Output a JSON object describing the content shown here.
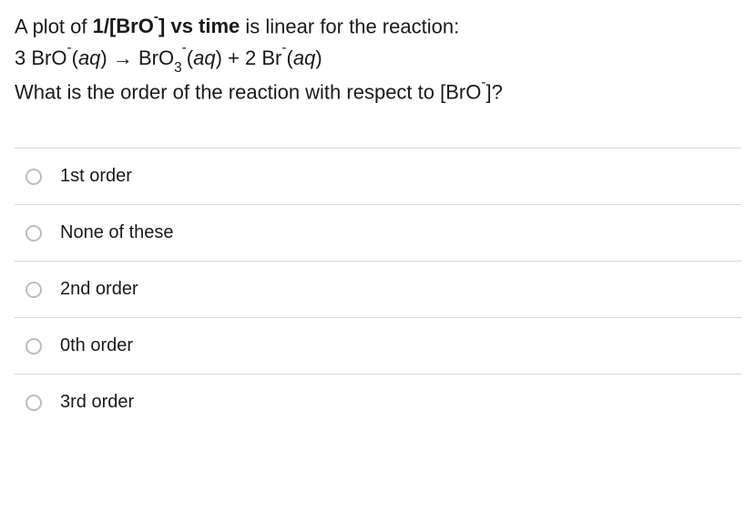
{
  "question": {
    "line1a": "A plot of ",
    "line1b": " is linear for the reaction:",
    "line2": "3 BrO⁻(aq) → BrO₃⁻(aq) + 2 Br⁻(aq)",
    "line3a": "What is the order of the reaction with respect to [BrO",
    "line3b": "]?",
    "bold_fragment_open": "1/[BrO",
    "bold_fragment_close": "] vs time"
  },
  "options": [
    {
      "label": "1st order"
    },
    {
      "label": "None of these"
    },
    {
      "label": "2nd order"
    },
    {
      "label": "0th order"
    },
    {
      "label": "3rd order"
    }
  ],
  "style": {
    "text_color": "#1a1a1a",
    "border_color": "#d9d9d9",
    "radio_border": "#babec2",
    "background": "#ffffff",
    "question_fontsize": 22,
    "option_fontsize": 20
  }
}
